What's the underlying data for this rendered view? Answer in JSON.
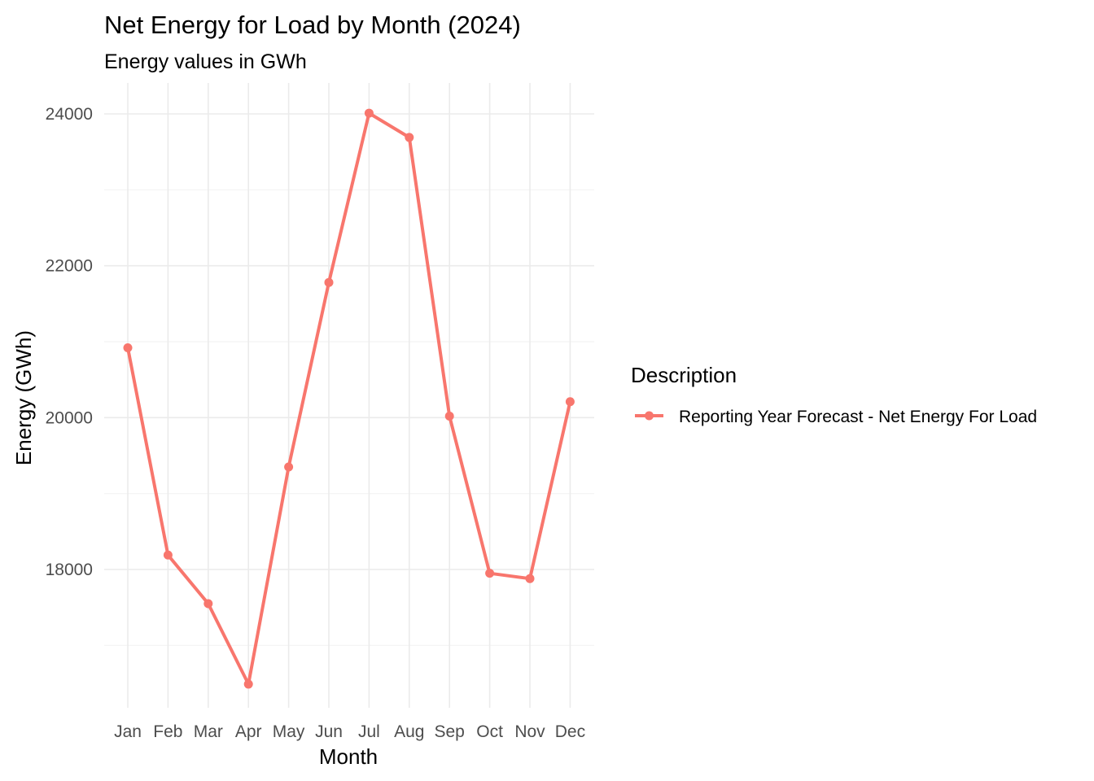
{
  "chart_data": {
    "type": "line",
    "title": "Net Energy for Load by Month (2024)",
    "subtitle": "Energy values in GWh",
    "xlabel": "Month",
    "ylabel": "Energy (GWh)",
    "categories": [
      "Jan",
      "Feb",
      "Mar",
      "Apr",
      "May",
      "Jun",
      "Jul",
      "Aug",
      "Sep",
      "Oct",
      "Nov",
      "Dec"
    ],
    "series": [
      {
        "name": "Reporting Year Forecast - Net Energy For Load",
        "color": "#F8766D",
        "values": [
          20920,
          18190,
          17550,
          16490,
          19350,
          21780,
          24010,
          23690,
          20020,
          17950,
          17880,
          20210
        ]
      }
    ],
    "y_ticks": [
      18000,
      20000,
      22000,
      24000
    ],
    "y_tick_labels": [
      "18000",
      "20000",
      "22000",
      "24000"
    ],
    "ylim": [
      16300,
      24200
    ],
    "grid": true,
    "legend": {
      "title": "Description",
      "position": "right"
    }
  }
}
